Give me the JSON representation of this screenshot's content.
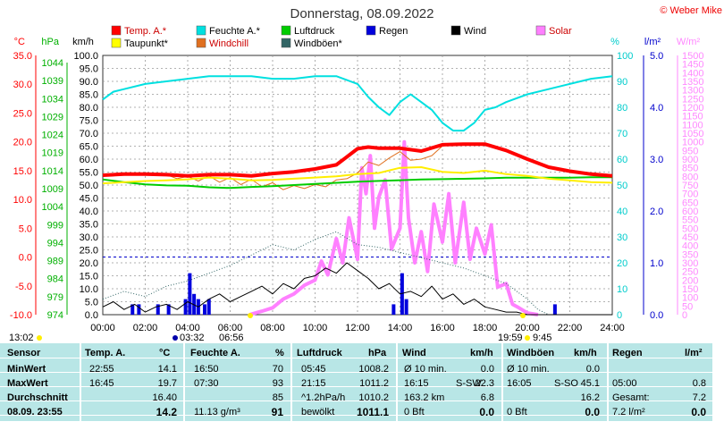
{
  "chart_data": {
    "type": "line",
    "title": "Donnerstag, 08.09.2022",
    "watermark": "© Weber Mike",
    "x_ticks": [
      "00:00",
      "02:00",
      "04:00",
      "06:00",
      "08:00",
      "10:00",
      "12:00",
      "14:00",
      "16:00",
      "18:00",
      "20:00",
      "22:00",
      "24:00"
    ],
    "axes": {
      "temp": {
        "label": "°C",
        "color": "#ff0000",
        "ticks": [
          "35.0",
          "30.0",
          "25.0",
          "20.0",
          "15.0",
          "10.0",
          "5.0",
          "0.0",
          "-5.0",
          "-10.0"
        ],
        "ylim": [
          -10,
          35
        ]
      },
      "pressure": {
        "label": "hPa",
        "color": "#00b000",
        "ticks": [
          "1044",
          "1039",
          "1034",
          "1029",
          "1024",
          "1019",
          "1014",
          "1009",
          "1004",
          "999",
          "994",
          "989",
          "984",
          "979",
          "974"
        ],
        "ylim": [
          974,
          1044
        ]
      },
      "wind": {
        "label": "km/h",
        "color": "#000000",
        "ticks": [
          "100.0",
          "95.0",
          "90.0",
          "85.0",
          "80.0",
          "75.0",
          "70.0",
          "65.0",
          "60.0",
          "55.0",
          "50.0",
          "45.0",
          "40.0",
          "35.0",
          "30.0",
          "25.0",
          "20.0",
          "15.0",
          "10.0",
          "5.0",
          "0.0"
        ],
        "ylim": [
          0,
          100
        ]
      },
      "humidity": {
        "label": "%",
        "color": "#00cccc",
        "ticks": [
          "100",
          "90",
          "80",
          "70",
          "60",
          "50",
          "40",
          "30",
          "20",
          "10",
          "0"
        ],
        "ylim": [
          0,
          100
        ]
      },
      "rain": {
        "label": "l/m²",
        "color": "#0000cc",
        "ticks": [
          "5.0",
          "4.0",
          "3.0",
          "2.0",
          "1.0",
          "0.0"
        ],
        "ylim": [
          0,
          5
        ]
      },
      "solar": {
        "label": "W/m²",
        "color": "#ff88ff",
        "ticks": [
          "1500",
          "1450",
          "1400",
          "1350",
          "1300",
          "1250",
          "1200",
          "1150",
          "1100",
          "1050",
          "1000",
          "950",
          "900",
          "850",
          "800",
          "750",
          "700",
          "650",
          "600",
          "550",
          "500",
          "450",
          "400",
          "350",
          "300",
          "250",
          "200",
          "150",
          "100",
          "50",
          "0"
        ],
        "ylim": [
          0,
          1500
        ]
      }
    },
    "legend": [
      {
        "name": "Temp. A.*",
        "color": "#ff0000"
      },
      {
        "name": "Feuchte A.*",
        "color": "#00e0e0"
      },
      {
        "name": "Luftdruck",
        "color": "#00cc00"
      },
      {
        "name": "Regen",
        "color": "#0000dd"
      },
      {
        "name": "Wind",
        "color": "#000000"
      },
      {
        "name": "Solar",
        "color": "#ff80ff"
      },
      {
        "name": "Taupunkt*",
        "color": "#ffff00"
      },
      {
        "name": "Windchill",
        "color": "#e07020"
      },
      {
        "name": "Windböen*",
        "color": "#336666"
      }
    ],
    "series": [
      {
        "name": "Temp. A.*",
        "axis": "temp",
        "x": [
          0,
          1,
          2,
          3,
          4,
          5,
          6,
          7,
          8,
          9,
          10,
          11,
          12,
          12.5,
          13,
          14,
          15,
          16,
          17,
          18,
          19,
          20,
          21,
          22,
          23,
          24
        ],
        "values": [
          14.2,
          14.4,
          14.4,
          14.3,
          14.1,
          14.3,
          14.3,
          14.1,
          14.5,
          14.8,
          15.3,
          16.0,
          18.8,
          19.1,
          18.9,
          18.9,
          18.4,
          19.5,
          19.6,
          19.6,
          18.5,
          17.0,
          15.6,
          14.9,
          14.4,
          14.1
        ]
      },
      {
        "name": "Feuchte A.*",
        "axis": "humidity",
        "x": [
          0,
          0.5,
          1,
          2,
          3,
          4,
          5,
          6,
          7,
          8,
          9,
          10,
          11,
          12,
          12.5,
          13,
          13.5,
          14,
          14.5,
          15,
          15.5,
          16,
          16.5,
          17,
          17.5,
          18,
          18.5,
          19,
          20,
          21,
          22,
          23,
          24
        ],
        "values": [
          83,
          86,
          87,
          89,
          90,
          91,
          92,
          92,
          92,
          91,
          91,
          92,
          92,
          89,
          84,
          80,
          77,
          82,
          85,
          82,
          79,
          74,
          71,
          71,
          74,
          79,
          80,
          82,
          85,
          87,
          89,
          91,
          92
        ]
      },
      {
        "name": "Luftdruck",
        "axis": "pressure",
        "x": [
          0,
          1,
          2,
          3,
          4,
          5,
          6,
          7,
          8,
          9,
          10,
          11,
          12,
          13,
          14,
          15,
          16,
          17,
          18,
          19,
          20,
          21,
          22,
          23,
          24
        ],
        "values": [
          1010.5,
          1009.8,
          1009.2,
          1008.9,
          1008.8,
          1008.4,
          1008.2,
          1008.5,
          1008.7,
          1009.0,
          1009.3,
          1009.6,
          1009.9,
          1010.1,
          1010.3,
          1010.5,
          1010.6,
          1010.7,
          1010.8,
          1011.0,
          1011.0,
          1011.0,
          1011.0,
          1011.1,
          1011.1
        ]
      },
      {
        "name": "Taupunkt*",
        "axis": "temp",
        "x": [
          0,
          1,
          2,
          3,
          4,
          5,
          6,
          7,
          8,
          9,
          10,
          11,
          12,
          13,
          14,
          15,
          16,
          17,
          18,
          19,
          20,
          21,
          22,
          23,
          24
        ],
        "values": [
          12.8,
          13.0,
          13.2,
          13.3,
          13.5,
          13.8,
          13.6,
          13.3,
          13.4,
          13.6,
          13.8,
          14.0,
          14.4,
          14.6,
          15.5,
          15.6,
          14.8,
          14.6,
          15.0,
          14.4,
          14.1,
          13.6,
          13.3,
          13.0,
          12.9
        ]
      },
      {
        "name": "Windchill",
        "axis": "temp",
        "x": [
          0,
          1,
          2,
          3,
          3.5,
          4,
          4.5,
          5,
          5.5,
          6,
          6.5,
          7,
          7.5,
          8,
          8.5,
          9,
          9.5,
          10,
          10.5,
          11,
          11.5,
          12,
          12.5,
          13,
          13.5,
          14,
          14.5,
          15,
          15.5,
          16,
          17,
          18,
          19,
          20,
          21,
          22,
          23,
          24
        ],
        "values": [
          14.2,
          14.4,
          14.4,
          14.3,
          13.6,
          14.0,
          13.2,
          14.1,
          13.0,
          13.8,
          12.6,
          13.5,
          12.2,
          12.9,
          11.7,
          12.4,
          11.9,
          12.6,
          12.2,
          13.4,
          13.6,
          14.6,
          16.5,
          15.9,
          17.2,
          18.3,
          16.8,
          17.0,
          17.6,
          19.3,
          19.6,
          19.6,
          18.5,
          17.0,
          15.6,
          14.9,
          14.4,
          14.1
        ]
      }
    ],
    "wind_series": {
      "name": "Wind",
      "axis": "wind",
      "x": [
        0,
        0.5,
        1,
        1.5,
        2,
        2.5,
        3,
        3.5,
        4,
        4.5,
        5,
        5.5,
        6,
        6.5,
        7,
        7.5,
        8,
        8.5,
        9,
        9.5,
        10,
        10.5,
        11,
        11.5,
        12,
        12.5,
        13,
        13.5,
        14,
        14.5,
        15,
        15.5,
        16,
        16.5,
        17,
        17.5,
        18,
        18.5,
        19,
        19.5,
        20,
        20.5,
        21,
        21.5,
        22,
        22.5,
        23,
        23.5,
        24
      ],
      "values": [
        3,
        5,
        2,
        4,
        1,
        3,
        4,
        2,
        5,
        3,
        6,
        8,
        5,
        7,
        9,
        11,
        8,
        12,
        10,
        14,
        15,
        18,
        16,
        20,
        17,
        14,
        10,
        12,
        8,
        9,
        7,
        11,
        6,
        8,
        4,
        6,
        3,
        2,
        1,
        1,
        0,
        0,
        0,
        0,
        0,
        0,
        0,
        0,
        0
      ]
    },
    "gust_series": {
      "name": "Windböen*",
      "axis": "wind",
      "x": [
        0,
        1,
        2,
        3,
        4,
        5,
        6,
        7,
        8,
        9,
        10,
        11,
        12,
        13,
        14,
        15,
        16,
        17,
        18,
        19,
        20,
        20.5,
        21,
        22,
        23,
        24
      ],
      "values": [
        6,
        9,
        7,
        11,
        13,
        16,
        19,
        23,
        27,
        25,
        29,
        32,
        27,
        26,
        24,
        22,
        20,
        18,
        15,
        12,
        6,
        2,
        0,
        0,
        0,
        0
      ]
    },
    "solar_series": {
      "name": "Solar",
      "axis": "solar",
      "x": [
        6.9,
        7.5,
        8,
        8.5,
        9,
        9.5,
        10,
        10.3,
        10.6,
        11,
        11.3,
        11.6,
        12,
        12.2,
        12.4,
        12.6,
        12.8,
        13,
        13.3,
        13.6,
        14,
        14.2,
        14.4,
        14.7,
        15,
        15.3,
        15.6,
        16,
        16.3,
        16.6,
        17,
        17.3,
        17.6,
        18,
        18.3,
        18.6,
        19,
        19.3,
        19.6,
        20,
        20.5
      ],
      "values": [
        0,
        20,
        40,
        90,
        120,
        170,
        200,
        310,
        230,
        440,
        300,
        560,
        320,
        850,
        700,
        920,
        500,
        680,
        780,
        380,
        500,
        1000,
        560,
        300,
        480,
        250,
        640,
        420,
        700,
        300,
        650,
        320,
        500,
        350,
        520,
        160,
        180,
        60,
        40,
        10,
        0
      ]
    },
    "rain_bars": [
      {
        "x": 1.4,
        "v": 0.2
      },
      {
        "x": 1.7,
        "v": 0.2
      },
      {
        "x": 2.6,
        "v": 0.2
      },
      {
        "x": 3.1,
        "v": 0.2
      },
      {
        "x": 3.9,
        "v": 0.3
      },
      {
        "x": 4.1,
        "v": 0.8
      },
      {
        "x": 4.3,
        "v": 0.4
      },
      {
        "x": 4.5,
        "v": 0.3
      },
      {
        "x": 4.8,
        "v": 0.2
      },
      {
        "x": 5.0,
        "v": 0.3
      },
      {
        "x": 13.7,
        "v": 0.2
      },
      {
        "x": 14.1,
        "v": 0.8
      },
      {
        "x": 14.3,
        "v": 0.3
      },
      {
        "x": 21.3,
        "v": 0.2
      }
    ],
    "zero_line_value": 0.0,
    "sun_marks": {
      "sunrise": "06:56",
      "sunset": "19:59",
      "moonrise": "03:32",
      "moonset": "9:45",
      "daylength": "13:02"
    }
  },
  "table": {
    "headers": [
      "Sensor",
      "Temp. A.",
      "°C",
      "Feuchte A.",
      "%",
      "Luftdruck",
      "hPa",
      "Wind",
      "km/h",
      "Windböen",
      "km/h",
      "Regen",
      "l/m²"
    ],
    "rows": [
      {
        "label": "MinWert",
        "temp_time": "22:55",
        "temp": "14.1",
        "hum_time": "16:50",
        "hum": "70",
        "press_time": "05:45",
        "press": "1008.2",
        "wind_desc": "Ø 10 min.",
        "wind_dir": "",
        "wind": "0.0",
        "gust_desc": "Ø 10 min.",
        "gust_dir": "",
        "gust": "0.0",
        "rain_desc": "",
        "rain": ""
      },
      {
        "label": "MaxWert",
        "temp_time": "16:45",
        "temp": "19.7",
        "hum_time": "07:30",
        "hum": "93",
        "press_time": "21:15",
        "press": "1011.2",
        "wind_desc": "16:15",
        "wind_dir": "S-SW",
        "wind": "22.3",
        "gust_desc": "16:05",
        "gust_dir": "S-SO",
        "gust": "45.1",
        "rain_desc": "05:00",
        "rain": "0.8"
      },
      {
        "label": "Durchschnitt",
        "temp_time": "",
        "temp": "16.40",
        "hum_time": "",
        "hum": "85",
        "press_time": "^1.2hPa/h",
        "press": "1010.2",
        "wind_desc": "163.2 km",
        "wind_dir": "",
        "wind": "6.8",
        "gust_desc": "",
        "gust_dir": "",
        "gust": "16.2",
        "rain_desc": "Gesamt:",
        "rain": "7.2"
      },
      {
        "label": "08.09. 23:55",
        "temp_time": "",
        "temp": "14.2",
        "hum_time": "11.13 g/m³",
        "hum": "91",
        "press_time": "bewölkt",
        "press": "1011.1",
        "wind_desc": "0 Bft",
        "wind_dir": "",
        "wind": "0.0",
        "gust_desc": "0 Bft",
        "gust_dir": "",
        "gust": "0.0",
        "rain_desc": "7.2 l/m²",
        "rain": "0.0"
      }
    ]
  }
}
